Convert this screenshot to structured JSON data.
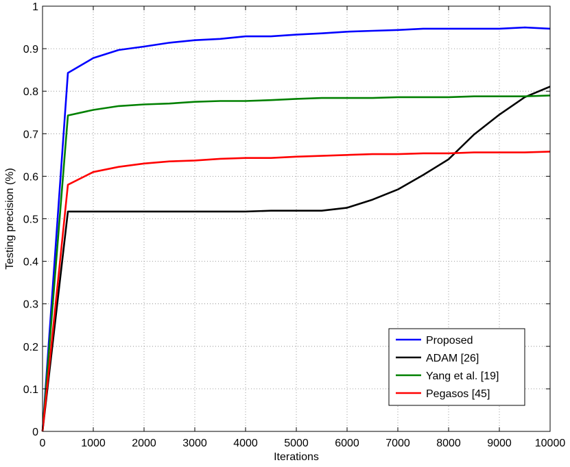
{
  "chart_data": {
    "type": "line",
    "xlabel": "Iterations",
    "ylabel": "Testing precision (%)",
    "xlim": [
      0,
      10000
    ],
    "ylim": [
      0,
      1
    ],
    "xticks": [
      0,
      1000,
      2000,
      3000,
      4000,
      5000,
      6000,
      7000,
      8000,
      9000,
      10000
    ],
    "yticks": [
      0,
      0.1,
      0.2,
      0.3,
      0.4,
      0.5,
      0.6,
      0.7,
      0.8,
      0.9,
      1
    ],
    "xtick_labels": [
      "0",
      "1000",
      "2000",
      "3000",
      "4000",
      "5000",
      "6000",
      "7000",
      "8000",
      "9000",
      "10000"
    ],
    "ytick_labels": [
      "0",
      "0.1",
      "0.2",
      "0.3",
      "0.4",
      "0.5",
      "0.6",
      "0.7",
      "0.8",
      "0.9",
      "1"
    ],
    "grid": true,
    "legend_position": "bottom-right",
    "x": [
      0,
      500,
      1000,
      1500,
      2000,
      2500,
      3000,
      3500,
      4000,
      4500,
      5000,
      5500,
      6000,
      6500,
      7000,
      7500,
      8000,
      8500,
      9000,
      9500,
      10000
    ],
    "series": [
      {
        "name": "Proposed",
        "color": "#0000ff",
        "values": [
          0,
          0.843,
          0.878,
          0.897,
          0.905,
          0.914,
          0.92,
          0.923,
          0.929,
          0.929,
          0.933,
          0.936,
          0.94,
          0.942,
          0.944,
          0.947,
          0.947,
          0.947,
          0.947,
          0.95,
          0.947
        ]
      },
      {
        "name": "ADAM [26]",
        "color": "#000000",
        "values": [
          0,
          0.517,
          0.517,
          0.517,
          0.517,
          0.517,
          0.517,
          0.517,
          0.517,
          0.519,
          0.519,
          0.519,
          0.526,
          0.545,
          0.569,
          0.603,
          0.64,
          0.698,
          0.745,
          0.786,
          0.811
        ]
      },
      {
        "name": "Yang et al. [19]",
        "color": "#008000",
        "values": [
          0,
          0.743,
          0.756,
          0.765,
          0.769,
          0.771,
          0.775,
          0.777,
          0.777,
          0.779,
          0.782,
          0.784,
          0.784,
          0.784,
          0.786,
          0.786,
          0.786,
          0.788,
          0.788,
          0.788,
          0.79
        ]
      },
      {
        "name": "Pegasos [45]",
        "color": "#ff0000",
        "values": [
          0,
          0.58,
          0.61,
          0.622,
          0.63,
          0.635,
          0.637,
          0.641,
          0.643,
          0.643,
          0.646,
          0.648,
          0.65,
          0.652,
          0.652,
          0.654,
          0.654,
          0.656,
          0.656,
          0.656,
          0.658
        ]
      }
    ]
  }
}
